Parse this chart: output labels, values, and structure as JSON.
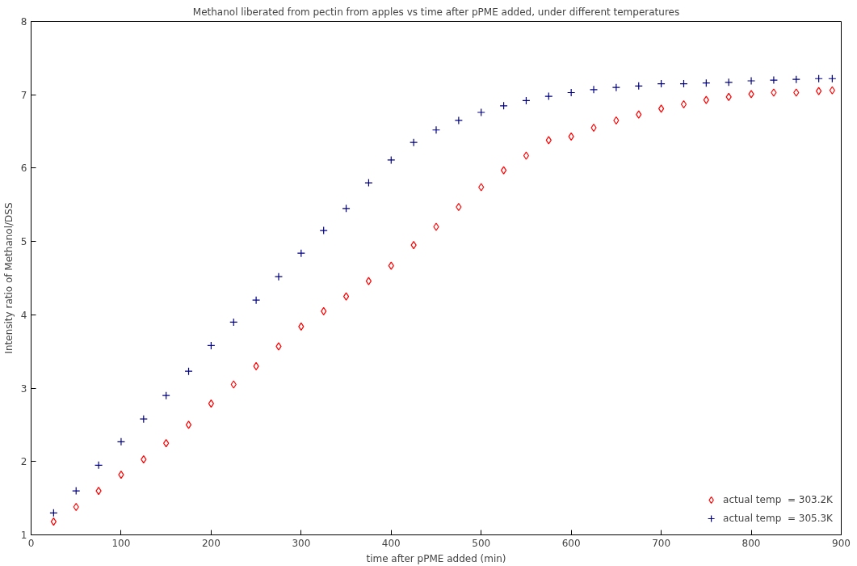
{
  "chart_data": {
    "type": "scatter",
    "title": "Methanol liberated from pectin from apples vs time after pPME added, under different temperatures",
    "xlabel": "time after pPME added (min)",
    "ylabel": "Intensity ratio of Methanol/DSS",
    "x": [
      25,
      50,
      75,
      100,
      125,
      150,
      175,
      200,
      225,
      250,
      275,
      300,
      325,
      350,
      375,
      400,
      425,
      450,
      475,
      500,
      525,
      550,
      575,
      600,
      625,
      650,
      675,
      700,
      725,
      750,
      775,
      800,
      825,
      850,
      875,
      890
    ],
    "series": [
      {
        "name": "actual temp  = 303.2K",
        "color": "#ff0000",
        "marker": "diamond",
        "values": [
          1.18,
          1.38,
          1.6,
          1.82,
          2.03,
          2.25,
          2.5,
          2.79,
          3.05,
          3.3,
          3.57,
          3.84,
          4.05,
          4.25,
          4.46,
          4.67,
          4.95,
          5.2,
          5.47,
          5.74,
          5.97,
          6.17,
          6.38,
          6.43,
          6.55,
          6.65,
          6.73,
          6.81,
          6.87,
          6.93,
          6.97,
          7.01,
          7.03,
          7.03,
          7.05,
          7.06
        ]
      },
      {
        "name": "actual temp  = 305.3K",
        "color": "#000080",
        "marker": "cross",
        "values": [
          1.3,
          1.6,
          1.95,
          2.27,
          2.58,
          2.9,
          3.23,
          3.58,
          3.9,
          4.2,
          4.52,
          4.84,
          5.15,
          5.45,
          5.8,
          6.11,
          6.35,
          6.52,
          6.65,
          6.76,
          6.85,
          6.92,
          6.98,
          7.03,
          7.07,
          7.1,
          7.12,
          7.15,
          7.15,
          7.16,
          7.17,
          7.19,
          7.2,
          7.21,
          7.22,
          7.22
        ]
      }
    ],
    "xlim": [
      0,
      900
    ],
    "xticks": [
      0,
      100,
      200,
      300,
      400,
      500,
      600,
      700,
      800,
      900
    ],
    "ylim": [
      1,
      8
    ],
    "yticks": [
      1,
      2,
      3,
      4,
      5,
      6,
      7,
      8
    ],
    "grid": false,
    "legend": "bottom right"
  }
}
